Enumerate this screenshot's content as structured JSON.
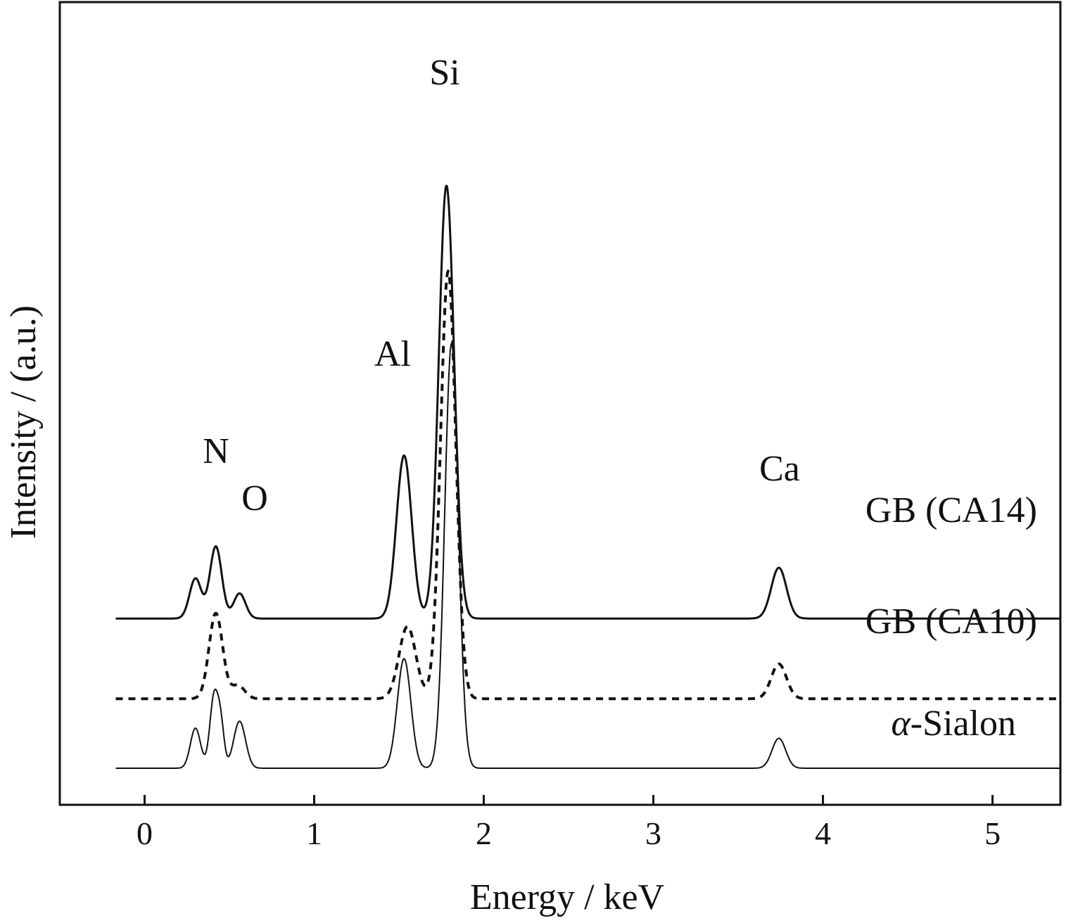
{
  "chart_data": {
    "type": "line",
    "xlabel": "Energy / keV",
    "ylabel": "Intensity / (a.u.)",
    "xlim": [
      -0.5,
      5.4
    ],
    "xticks": [
      "0",
      "1",
      "2",
      "3",
      "4",
      "5"
    ],
    "yticks": [],
    "grid": false,
    "legend": "inline labels at right of each trace",
    "peak_labels": [
      {
        "text": "N",
        "energy": 0.42
      },
      {
        "text": "O",
        "energy": 0.65
      },
      {
        "text": "Al",
        "energy": 1.49
      },
      {
        "text": "Si",
        "energy": 1.78
      },
      {
        "text": "Ca",
        "energy": 3.78
      }
    ],
    "series": [
      {
        "name": "GB (CA14)",
        "label_prefix": "",
        "label_main": "GB (CA14)",
        "line_style": "solid",
        "line_width": 3,
        "baseline": 2.8,
        "peaks": [
          {
            "energy": 0.3,
            "height": 0.75,
            "width": 0.035
          },
          {
            "energy": 0.42,
            "height": 1.35,
            "width": 0.035
          },
          {
            "energy": 0.56,
            "height": 0.47,
            "width": 0.035
          },
          {
            "energy": 1.53,
            "height": 3.05,
            "width": 0.045
          },
          {
            "energy": 1.78,
            "height": 8.1,
            "width": 0.045
          },
          {
            "energy": 3.74,
            "height": 0.95,
            "width": 0.045
          }
        ]
      },
      {
        "name": "GB (CA10)",
        "label_prefix": "",
        "label_main": "GB (CA10)",
        "line_style": "dashed",
        "line_width": 4,
        "baseline": 1.3,
        "peaks": [
          {
            "energy": 0.42,
            "height": 1.6,
            "width": 0.04
          },
          {
            "energy": 0.55,
            "height": 0.25,
            "width": 0.04
          },
          {
            "energy": 1.55,
            "height": 1.35,
            "width": 0.05
          },
          {
            "energy": 1.79,
            "height": 8.0,
            "width": 0.045
          },
          {
            "energy": 3.74,
            "height": 0.65,
            "width": 0.045
          }
        ]
      },
      {
        "name": "α-Sialon",
        "label_prefix": "α",
        "label_main": "-Sialon",
        "line_style": "solid",
        "line_width": 2,
        "baseline": 0.0,
        "peaks": [
          {
            "energy": 0.3,
            "height": 0.75,
            "width": 0.03
          },
          {
            "energy": 0.41,
            "height": 1.35,
            "width": 0.025
          },
          {
            "energy": 0.45,
            "height": 0.7,
            "width": 0.02
          },
          {
            "energy": 0.56,
            "height": 0.88,
            "width": 0.035
          },
          {
            "energy": 1.53,
            "height": 2.05,
            "width": 0.04
          },
          {
            "energy": 1.81,
            "height": 7.95,
            "width": 0.04
          },
          {
            "energy": 3.74,
            "height": 0.56,
            "width": 0.04
          }
        ]
      }
    ]
  }
}
